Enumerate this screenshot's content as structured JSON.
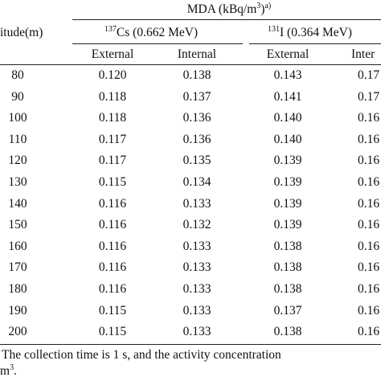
{
  "table": {
    "header": {
      "group": [
        "MDA (kBq/m",
        "3",
        ")",
        "a)"
      ],
      "altitude": "itude(m)",
      "cs": [
        "137",
        "Cs (0.662 MeV)"
      ],
      "iodine": [
        "131",
        "I (0.364 MeV)"
      ],
      "columns": [
        "External",
        "Internal",
        "External",
        "Inter"
      ]
    },
    "rows": [
      [
        "80",
        "0.120",
        "0.138",
        "0.143",
        "0.17"
      ],
      [
        "90",
        "0.118",
        "0.137",
        "0.141",
        "0.17"
      ],
      [
        "100",
        "0.118",
        "0.136",
        "0.140",
        "0.16"
      ],
      [
        "110",
        "0.117",
        "0.136",
        "0.140",
        "0.16"
      ],
      [
        "120",
        "0.117",
        "0.135",
        "0.139",
        "0.16"
      ],
      [
        "130",
        "0.115",
        "0.134",
        "0.139",
        "0.16"
      ],
      [
        "140",
        "0.116",
        "0.133",
        "0.139",
        "0.16"
      ],
      [
        "150",
        "0.116",
        "0.132",
        "0.139",
        "0.16"
      ],
      [
        "160",
        "0.116",
        "0.133",
        "0.138",
        "0.16"
      ],
      [
        "170",
        "0.116",
        "0.133",
        "0.138",
        "0.16"
      ],
      [
        "180",
        "0.116",
        "0.133",
        "0.138",
        "0.16"
      ],
      [
        "190",
        "0.115",
        "0.133",
        "0.137",
        "0.16"
      ],
      [
        "200",
        "0.115",
        "0.133",
        "0.138",
        "0.16"
      ]
    ],
    "footnote": [
      "The collection time is 1 s, and the activity concentration",
      "m",
      "3",
      "."
    ]
  }
}
